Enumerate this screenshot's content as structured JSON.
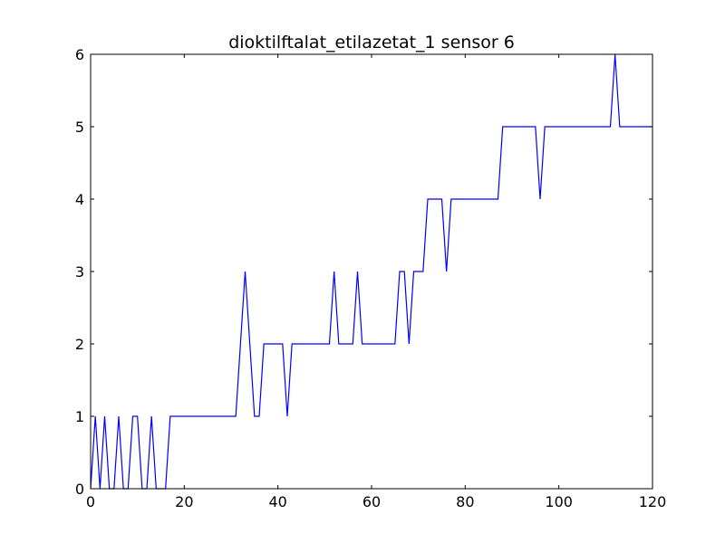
{
  "chart_data": {
    "type": "line",
    "title": "dioktilftalat_etilazetat_1 sensor 6",
    "xlabel": "",
    "ylabel": "",
    "xlim": [
      0,
      120
    ],
    "ylim": [
      0,
      6
    ],
    "xticks": [
      0,
      20,
      40,
      60,
      80,
      100,
      120
    ],
    "yticks": [
      0,
      1,
      2,
      3,
      4,
      5,
      6
    ],
    "grid": false,
    "series": [
      {
        "color": "#0000ff",
        "points": [
          [
            0,
            0
          ],
          [
            1,
            1
          ],
          [
            2,
            0
          ],
          [
            3,
            1
          ],
          [
            4,
            0
          ],
          [
            5,
            0
          ],
          [
            6,
            1
          ],
          [
            7,
            0
          ],
          [
            8,
            0
          ],
          [
            9,
            1
          ],
          [
            10,
            1
          ],
          [
            11,
            0
          ],
          [
            12,
            0
          ],
          [
            13,
            1
          ],
          [
            14,
            0
          ],
          [
            15,
            0
          ],
          [
            16,
            0
          ],
          [
            17,
            1
          ],
          [
            31,
            1
          ],
          [
            33,
            3
          ],
          [
            35,
            1
          ],
          [
            36,
            1
          ],
          [
            37,
            2
          ],
          [
            41,
            2
          ],
          [
            42,
            1
          ],
          [
            43,
            2
          ],
          [
            51,
            2
          ],
          [
            52,
            3
          ],
          [
            53,
            2
          ],
          [
            56,
            2
          ],
          [
            57,
            3
          ],
          [
            58,
            2
          ],
          [
            65,
            2
          ],
          [
            66,
            3
          ],
          [
            67,
            3
          ],
          [
            68,
            2
          ],
          [
            69,
            3
          ],
          [
            71,
            3
          ],
          [
            72,
            4
          ],
          [
            75,
            4
          ],
          [
            76,
            3
          ],
          [
            77,
            4
          ],
          [
            87,
            4
          ],
          [
            88,
            5
          ],
          [
            95,
            5
          ],
          [
            96,
            4
          ],
          [
            97,
            5
          ],
          [
            111,
            5
          ],
          [
            112,
            6
          ],
          [
            113,
            5
          ],
          [
            120,
            5
          ]
        ]
      }
    ]
  }
}
